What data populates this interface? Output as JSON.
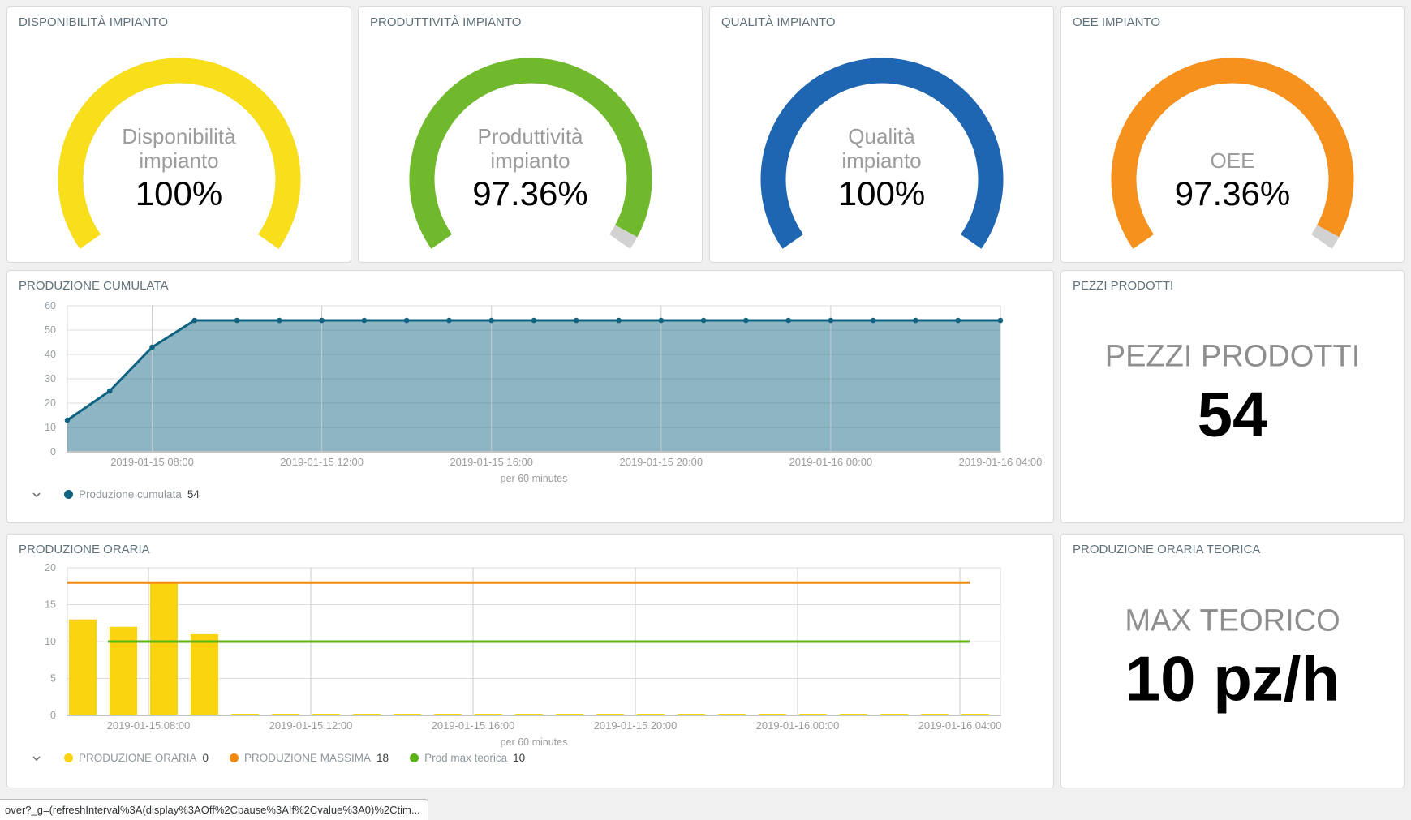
{
  "panels": {
    "gauge1": {
      "title": "DISPONIBILITÀ IMPIANTO",
      "label_lines": [
        "Disponibilità",
        "impianto"
      ],
      "value": "100%",
      "pct": 1.0,
      "color": "#F8DE1B"
    },
    "gauge2": {
      "title": "PRODUTTIVITÀ IMPIANTO",
      "label_lines": [
        "Produttività",
        "impianto"
      ],
      "value": "97.36%",
      "pct": 0.9736,
      "color": "#70B92C"
    },
    "gauge3": {
      "title": "QUALITÀ IMPIANTO",
      "label_lines": [
        "Qualità",
        "impianto"
      ],
      "value": "100%",
      "pct": 1.0,
      "color": "#1F66B2"
    },
    "gauge4": {
      "title": "OEE IMPIANTO",
      "label_lines": [
        "OEE"
      ],
      "value": "97.36%",
      "pct": 0.9736,
      "color": "#F6911E"
    },
    "pezzi": {
      "title": "PEZZI PRODOTTI",
      "label": "PEZZI PRODOTTI",
      "value": "54"
    },
    "teorica": {
      "title": "PRODUZIONE ORARIA TEORICA",
      "label": "MAX TEORICO",
      "value": "10 pz/h"
    }
  },
  "gauge_track_color": "#D2D2D2",
  "chart_data": [
    {
      "id": "cumulata",
      "type": "area",
      "title": "PRODUZIONE CUMULATA",
      "x": [
        "2019-01-15 06:00",
        "2019-01-15 07:00",
        "2019-01-15 08:00",
        "2019-01-15 09:00",
        "2019-01-15 10:00",
        "2019-01-15 11:00",
        "2019-01-15 12:00",
        "2019-01-15 13:00",
        "2019-01-15 14:00",
        "2019-01-15 15:00",
        "2019-01-15 16:00",
        "2019-01-15 17:00",
        "2019-01-15 18:00",
        "2019-01-15 19:00",
        "2019-01-15 20:00",
        "2019-01-15 21:00",
        "2019-01-15 22:00",
        "2019-01-15 23:00",
        "2019-01-16 00:00",
        "2019-01-16 01:00",
        "2019-01-16 02:00",
        "2019-01-16 03:00",
        "2019-01-16 04:00"
      ],
      "series": [
        {
          "name": "Produzione cumulata",
          "kind": "area",
          "color": "#0F6280",
          "fill_opacity": 0.47,
          "legend_value": "54",
          "values": [
            13,
            25,
            43,
            54,
            54,
            54,
            54,
            54,
            54,
            54,
            54,
            54,
            54,
            54,
            54,
            54,
            54,
            54,
            54,
            54,
            54,
            54,
            54
          ]
        }
      ],
      "ylim": [
        0,
        60
      ],
      "yticks": [
        0,
        10,
        20,
        30,
        40,
        50,
        60
      ],
      "xticks": {
        "hours": [
          2,
          6,
          10,
          14,
          18,
          22
        ],
        "labels": [
          "2019-01-15 08:00",
          "2019-01-15 12:00",
          "2019-01-15 16:00",
          "2019-01-15 20:00",
          "2019-01-16 00:00",
          "2019-01-16 04:00"
        ]
      },
      "xlabel": "per 60 minutes",
      "grid": true,
      "legend_position": "bottom"
    },
    {
      "id": "oraria",
      "type": "bar",
      "title": "PRODUZIONE ORARIA",
      "x": [
        "2019-01-15 06:00",
        "2019-01-15 07:00",
        "2019-01-15 08:00",
        "2019-01-15 09:00",
        "2019-01-15 10:00",
        "2019-01-15 11:00",
        "2019-01-15 12:00",
        "2019-01-15 13:00",
        "2019-01-15 14:00",
        "2019-01-15 15:00",
        "2019-01-15 16:00",
        "2019-01-15 17:00",
        "2019-01-15 18:00",
        "2019-01-15 19:00",
        "2019-01-15 20:00",
        "2019-01-15 21:00",
        "2019-01-15 22:00",
        "2019-01-15 23:00",
        "2019-01-16 00:00",
        "2019-01-16 01:00",
        "2019-01-16 02:00",
        "2019-01-16 03:00",
        "2019-01-16 04:00"
      ],
      "series": [
        {
          "name": "PRODUZIONE ORARIA",
          "kind": "bar",
          "color": "#FAD40E",
          "legend_value": "0",
          "values": [
            13,
            12,
            18,
            11,
            0,
            0,
            0,
            0,
            0,
            0,
            0,
            0,
            0,
            0,
            0,
            0,
            0,
            0,
            0,
            0,
            0,
            0,
            0
          ]
        },
        {
          "name": "PRODUZIONE MASSIMA",
          "kind": "line",
          "color": "#EF8A10",
          "legend_value": "18",
          "constant": 18,
          "start_hour": 0
        },
        {
          "name": "Prod max teorica",
          "kind": "line",
          "color": "#5CB216",
          "legend_value": "10",
          "constant": 10,
          "start_hour": 1
        }
      ],
      "ylim": [
        0,
        20
      ],
      "yticks": [
        0,
        5,
        10,
        15,
        20
      ],
      "xticks": {
        "hours": [
          2,
          6,
          10,
          14,
          18,
          22
        ],
        "labels": [
          "2019-01-15 08:00",
          "2019-01-15 12:00",
          "2019-01-15 16:00",
          "2019-01-15 20:00",
          "2019-01-16 00:00",
          "2019-01-16 04:00"
        ]
      },
      "xlabel": "per 60 minutes",
      "grid": true,
      "legend_position": "bottom"
    }
  ],
  "statusbar": {
    "url_preview": "over?_g=(refreshInterval%3A(display%3AOff%2Cpause%3A!f%2Cvalue%3A0)%2Ctim..."
  }
}
